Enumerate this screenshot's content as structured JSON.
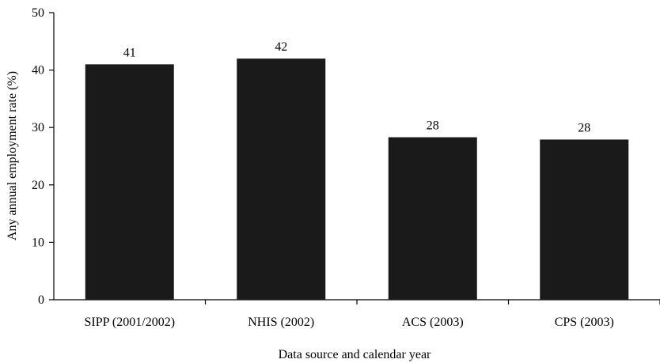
{
  "chart_data": {
    "type": "bar",
    "title": "",
    "xlabel": "Data source and calendar year",
    "ylabel": "Any annual employment rate (%)",
    "categories": [
      "SIPP (2001/2002)",
      "NHIS (2002)",
      "ACS (2003)",
      "CPS (2003)"
    ],
    "values": [
      41,
      42,
      28.3,
      27.9
    ],
    "data_labels": [
      "41",
      "42",
      "28",
      "28"
    ],
    "ylim": [
      0,
      50
    ],
    "yticks": [
      0,
      10,
      20,
      30,
      40,
      50
    ],
    "grid": false,
    "bar_color": "#1a1a1a"
  }
}
